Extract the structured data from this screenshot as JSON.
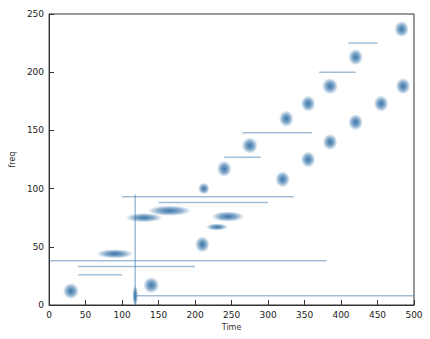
{
  "chart_data": {
    "type": "scatter",
    "x_label": "Time",
    "y_label": "freq",
    "xlim": [
      0,
      500
    ],
    "ylim": [
      0,
      250
    ],
    "xticks": [
      0,
      50,
      100,
      150,
      200,
      250,
      300,
      350,
      400,
      450,
      500
    ],
    "yticks": [
      0,
      50,
      100,
      150,
      200,
      250
    ],
    "grid": false,
    "color": "#2f6ea5",
    "x": [
      30,
      140,
      118,
      90,
      130,
      165,
      245,
      230,
      210,
      212,
      240,
      275,
      325,
      355,
      385,
      420,
      483,
      320,
      355,
      385,
      420,
      455,
      485
    ],
    "values": [
      12,
      17,
      8,
      44,
      75,
      81,
      76,
      67,
      52,
      100,
      117,
      137,
      160,
      173,
      188,
      213,
      237,
      108,
      125,
      140,
      157,
      173,
      188
    ],
    "widths": [
      22,
      22,
      8,
      50,
      50,
      60,
      45,
      30,
      20,
      16,
      20,
      22,
      20,
      20,
      22,
      20,
      20,
      20,
      20,
      20,
      20,
      20,
      20
    ],
    "heights": [
      14,
      14,
      18,
      8,
      8,
      9,
      9,
      6,
      14,
      10,
      14,
      14,
      14,
      14,
      14,
      14,
      14,
      14,
      14,
      14,
      14,
      14,
      14
    ],
    "segments": [
      [
        118,
        0,
        118,
        95
      ],
      [
        120,
        8,
        500,
        8
      ],
      [
        0,
        38,
        380,
        38
      ],
      [
        40,
        33,
        200,
        33
      ],
      [
        100,
        93,
        335,
        93
      ],
      [
        150,
        88,
        300,
        88
      ],
      [
        240,
        127,
        290,
        127
      ],
      [
        265,
        148,
        360,
        148
      ],
      [
        370,
        200,
        420,
        200
      ],
      [
        410,
        225,
        450,
        225
      ],
      [
        40,
        26,
        100,
        26
      ]
    ]
  }
}
